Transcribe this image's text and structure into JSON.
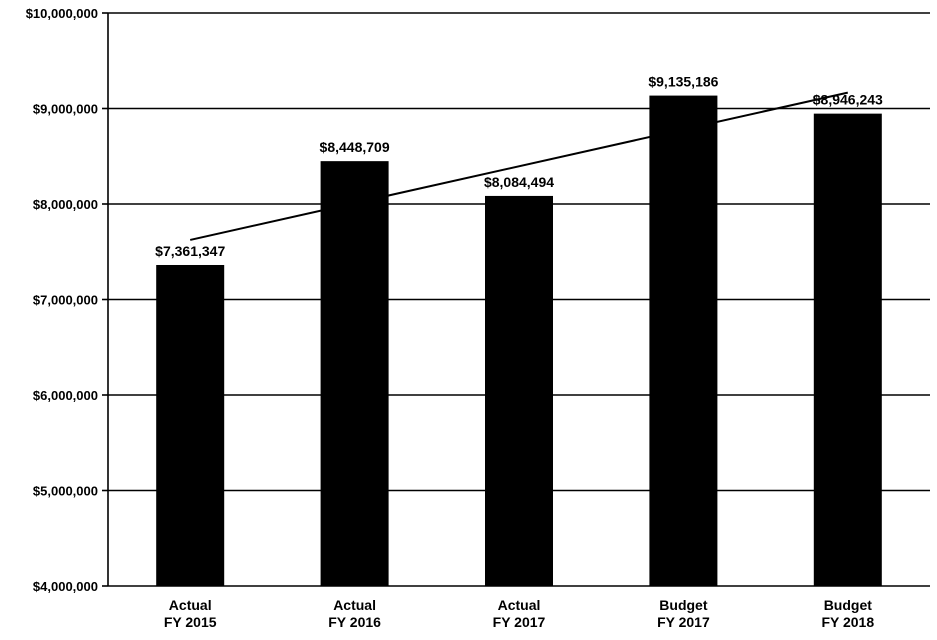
{
  "chart_data": {
    "type": "bar",
    "title": "",
    "xlabel": "",
    "ylabel": "",
    "categories": [
      [
        "Actual",
        "FY 2015"
      ],
      [
        "Actual",
        "FY 2016"
      ],
      [
        "Actual",
        "FY 2017"
      ],
      [
        "Budget",
        "FY 2017"
      ],
      [
        "Budget",
        "FY 2018"
      ]
    ],
    "series": [
      {
        "values": [
          7361347,
          8448709,
          8084494,
          9135186,
          8946243
        ]
      }
    ],
    "data_labels": [
      "$7,361,347",
      "$8,448,709",
      "$8,084,494",
      "$9,135,186",
      "$8,946,243"
    ],
    "trendline": {
      "type": "linear",
      "shown": true
    },
    "ylim": [
      4000000,
      10000000
    ],
    "y_ticks": [
      4000000,
      5000000,
      6000000,
      7000000,
      8000000,
      9000000,
      10000000
    ],
    "y_tick_labels": [
      "$4,000,000",
      "$5,000,000",
      "$6,000,000",
      "$7,000,000",
      "$8,000,000",
      "$9,000,000",
      "$10,000,000"
    ],
    "grid": true,
    "legend": "none",
    "colors": {
      "bar": "#000000",
      "grid": "#000000",
      "trendline": "#000000"
    }
  }
}
